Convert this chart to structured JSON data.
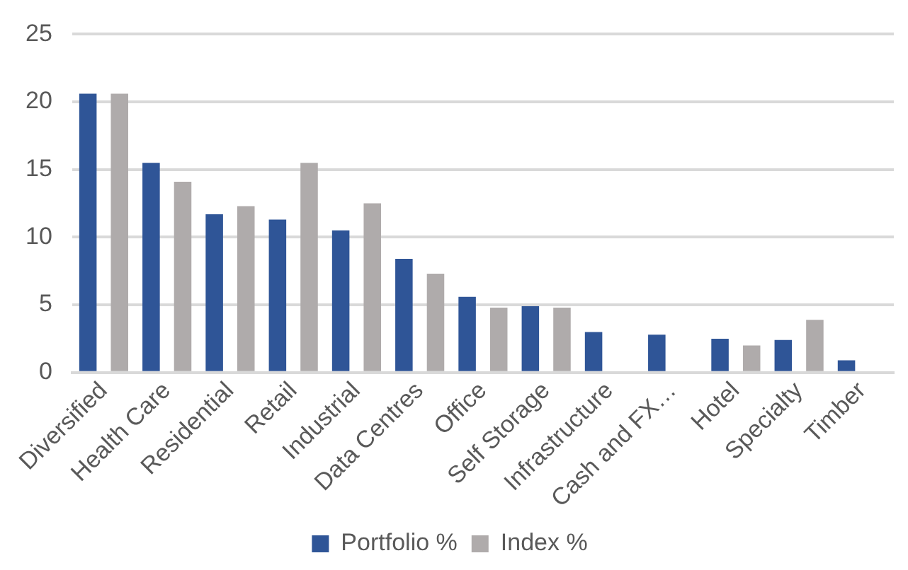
{
  "chart_data": {
    "type": "bar",
    "categories": [
      "Diversified",
      "Health Care",
      "Residential",
      "Retail",
      "Industrial",
      "Data Centres",
      "Office",
      "Self Storage",
      "Infrastructure",
      "Cash and FX…",
      "Hotel",
      "Specialty",
      "Timber"
    ],
    "series": [
      {
        "name": "Portfolio %",
        "color": "#2f5597",
        "values": [
          20.6,
          15.5,
          11.7,
          11.3,
          10.5,
          8.4,
          5.6,
          4.9,
          3.0,
          2.8,
          2.5,
          2.4,
          0.9
        ]
      },
      {
        "name": "Index %",
        "color": "#afabab",
        "values": [
          20.6,
          14.1,
          12.3,
          15.5,
          12.5,
          7.3,
          4.8,
          4.8,
          null,
          null,
          2.0,
          3.9,
          null
        ]
      }
    ],
    "ylim": [
      0,
      25
    ],
    "yticks": [
      0,
      5,
      10,
      15,
      20,
      25
    ],
    "grid": "y",
    "legend": "bottom"
  }
}
